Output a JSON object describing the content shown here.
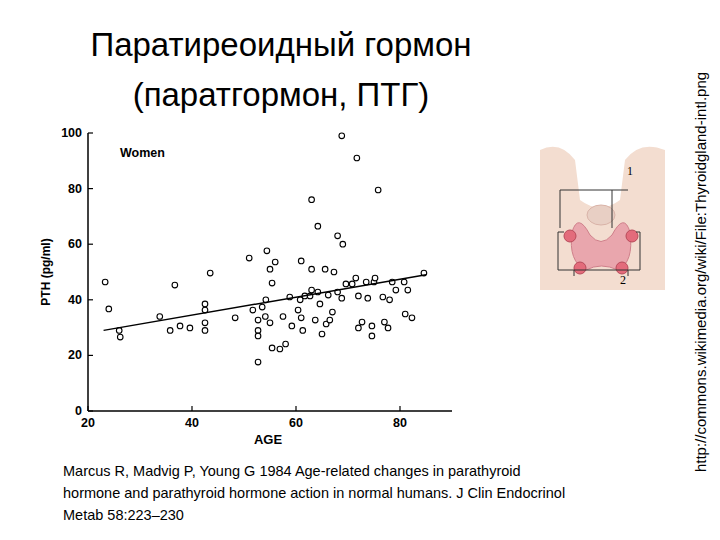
{
  "slide": {
    "title": [
      "Паратиреоидный гормон",
      "(паратгормон, ПТГ)"
    ],
    "citation": [
      "Marcus R, Madvig P, Young G 1984 Age-related changes in parathyroid",
      "hormone and parathyroid hormone action in normal humans. J Clin Endocrinol",
      "Metab 58:223–230"
    ],
    "source_url": "http://commons.wikimedia.org/wiki/File:Thyroidgland-intl.png",
    "figure_labels": [
      "1",
      "2"
    ]
  },
  "chart_data": {
    "type": "scatter",
    "x_label": "AGE",
    "y_label": "PTH (pg/ml)",
    "xlim": [
      20,
      90
    ],
    "xticks": [
      20,
      40,
      60,
      80
    ],
    "ylim": [
      0,
      100
    ],
    "yticks": [
      0,
      20,
      40,
      60,
      80,
      100
    ],
    "grid": false,
    "legend": "upper left",
    "series": [
      {
        "name": "Women",
        "type": "scatter",
        "marker": "circle",
        "color": "#000000",
        "x": [
          68.8,
          71.7,
          75.8,
          63,
          64.2,
          68,
          69,
          43.5,
          51,
          54.4,
          56,
          55,
          61,
          63,
          65.6,
          23.3,
          36.7,
          24,
          26,
          26.2,
          33.8,
          35.8,
          37.7,
          39.6,
          42.5,
          42.5,
          42.5,
          42.5,
          48.3,
          51.7,
          52.7,
          52.7,
          52.7,
          52.7,
          53.5,
          54.1,
          54.2,
          55.4,
          55,
          55.4,
          56.9,
          58,
          57.5,
          58.8,
          59.2,
          60.4,
          61,
          60.8,
          61.3,
          61.7,
          62.7,
          63,
          63.7,
          64.2,
          64.6,
          65,
          65.8,
          66.2,
          66.5,
          67,
          67.3,
          68,
          68.8,
          69.6,
          70.8,
          71.5,
          72,
          72.7,
          72,
          73.5,
          73.8,
          74.6,
          75,
          75.2,
          74.6,
          77,
          76.7,
          78,
          79.2,
          78.5,
          80.8,
          81.5,
          81,
          82.3,
          84.6,
          77.7
        ],
        "values": [
          99,
          91,
          79.5,
          76,
          66.5,
          63,
          60,
          49.6,
          55,
          57.6,
          53.6,
          51,
          54,
          51,
          51,
          46.4,
          45.3,
          36.7,
          29,
          26.6,
          34,
          29,
          30.6,
          29.9,
          36.3,
          38.5,
          31.7,
          29,
          33.5,
          36.3,
          32.7,
          29,
          27,
          17.6,
          37.4,
          34,
          40,
          46,
          31.7,
          22.7,
          22.3,
          24.1,
          34,
          41,
          30.6,
          36.3,
          33.5,
          40,
          29,
          41.4,
          41.4,
          43.5,
          32.7,
          42.8,
          38.5,
          27.7,
          31.3,
          41.7,
          32.7,
          35.6,
          50,
          42.8,
          40.6,
          45.7,
          45.7,
          47.8,
          41.4,
          32,
          29.9,
          46.4,
          40.6,
          30.6,
          46.4,
          47.8,
          27,
          32,
          41,
          40,
          43.5,
          46.4,
          46.4,
          43.5,
          34.9,
          33.5,
          49.6,
          29.9
        ]
      },
      {
        "type": "line",
        "line_style": "solid",
        "color": "#000000",
        "x": [
          23,
          85
        ],
        "values": [
          29,
          49
        ]
      }
    ]
  }
}
